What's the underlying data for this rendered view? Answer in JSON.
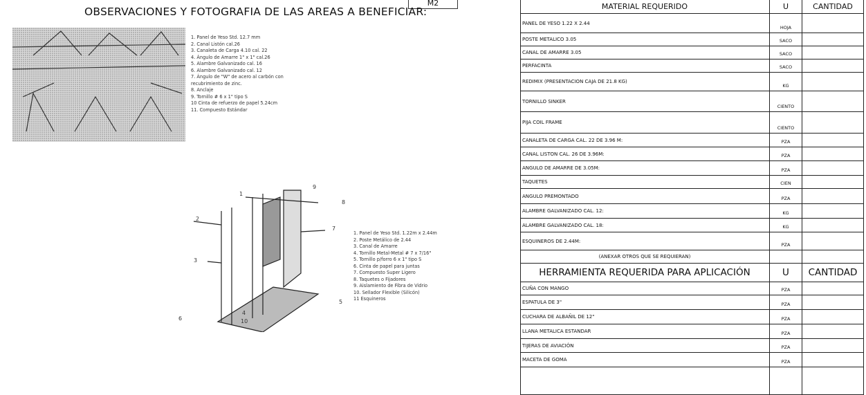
{
  "header": {
    "fragment": "M2",
    "title": "OBSERVACIONES Y FOTOGRAFIA DE LAS AREAS A BENEFICIAR:"
  },
  "figure_1": {
    "items": [
      "1. Panel de Yeso Std. 12.7 mm",
      "2. Canal Listón cal.26",
      "3. Canaleta de Carga 4.10 cal. 22",
      "4. Ángulo de Amarre 1\" x 1\" cal.26",
      "5. Alambre Galvanizado cal. 16",
      "6. Alambre Galvanizado cal. 12",
      "7. Ángulo de \"W\" de acero al carbón con recubrimiento de zinc.",
      "8. Anclaje",
      "9. Tornillo # 6 x 1\" tipo S",
      "10 Cinta de refuerzo de papel 5.24cm",
      "11. Compuesto Estándar"
    ]
  },
  "figure_2": {
    "callouts": [
      "1",
      "9",
      "8",
      "2",
      "7",
      "3",
      "5",
      "6",
      "4",
      "10"
    ],
    "items": [
      "1. Panel de Yeso Std. 1.22m x 2.44m",
      "2. Poste Metálico de 2.44",
      "3. Canal de Amarre",
      "4. Tornillo Metal-Metal # 7 x 7/16\"",
      "5. Tornillo p/forro 6 x 1\" tipo S",
      "6. Cinta de papel para juntas",
      "7. Compuesto Super Ligero",
      "8. Taquetes o Fijadores",
      "9. Aislamiento de Fibra de Vidrio",
      "10. Sellador Flexible (Silicón)",
      "11 Esquineros"
    ]
  },
  "materials": {
    "header": [
      "MATERIAL REQUERIDO",
      "U",
      "CANTIDAD"
    ],
    "rows": [
      [
        "PANEL DE YESO 1.22 X 2.44",
        "HOJA"
      ],
      [
        "POSTE METALICO 3.05",
        "SACO"
      ],
      [
        "CANAL DE AMARRE 3.05",
        "SACO"
      ],
      [
        "PERFACINTA",
        "SACO"
      ],
      [
        "REDIMIX (PRESENTACION CAJA DE 21.8 KG)",
        "KG"
      ],
      [
        "TORNILLO SINKER",
        "CIENTO"
      ],
      [
        "PIJA COIL FRAME",
        "CIENTO"
      ],
      [
        "CANALETA DE CARGA CAL. 22 DE 3.96 M:",
        "PZA"
      ],
      [
        "CANAL LISTON CAL. 26 DE 3.96M:",
        "PZA"
      ],
      [
        "ANGULO DE AMARRE DE 3.05M:",
        "PZA"
      ],
      [
        "TAQUETES",
        "CIEN"
      ],
      [
        "ANGULO PREMONTADO",
        "PZA"
      ],
      [
        "ALAMBRE GALVANIZADO CAL. 12:",
        "KG"
      ],
      [
        "ALAMBRE GALVANIZADO CAL. 18:",
        "KG"
      ],
      [
        "ESQUINEROS DE 2.44M:",
        "PZA"
      ]
    ],
    "note": "(ANEXAR OTROS QUE SE REQUIERAN)"
  },
  "tools": {
    "header": [
      "HERRAMIENTA REQUERIDA PARA APLICACIÓN",
      "U",
      "CANTIDAD"
    ],
    "rows": [
      [
        "CUÑA CON MANGO",
        "PZA"
      ],
      [
        "ESPATULA DE 3\"",
        "PZA"
      ],
      [
        "CUCHARA DE ALBAÑIL DE 12\"",
        "PZA"
      ],
      [
        "LLANA METALICA ESTANDAR",
        "PZA"
      ],
      [
        "TIJERAS DE AVIACIÓN",
        "PZA"
      ],
      [
        "MACETA DE GOMA",
        "PZA"
      ]
    ]
  }
}
